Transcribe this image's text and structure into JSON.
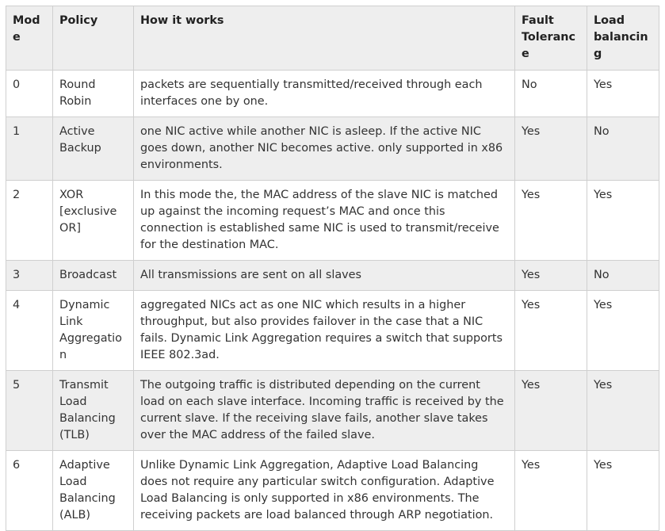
{
  "table": {
    "headers": {
      "mode": "Mode",
      "policy": "Policy",
      "how": "How it works",
      "fault": "Fault Tolerance",
      "load": "Load balancing"
    },
    "rows": [
      {
        "mode": "0",
        "policy": "Round Robin",
        "how": "packets are sequentially transmitted/received through each interfaces one by one.",
        "fault": "No",
        "load": "Yes"
      },
      {
        "mode": "1",
        "policy": "Active Backup",
        "how": "one NIC active while another NIC is asleep. If the active NIC goes down, another NIC becomes active. only supported in x86 environments.",
        "fault": "Yes",
        "load": "No"
      },
      {
        "mode": "2",
        "policy": "XOR [exclusive OR]",
        "how": "In this mode the, the MAC address of the slave NIC is matched up against the incoming request’s MAC and once this connection is established same NIC is used to transmit/receive for the destination MAC.",
        "fault": "Yes",
        "load": "Yes"
      },
      {
        "mode": "3",
        "policy": "Broadcast",
        "how": "All transmissions are sent on all slaves",
        "fault": "Yes",
        "load": "No"
      },
      {
        "mode": "4",
        "policy": "Dynamic Link Aggregation",
        "how": "aggregated NICs act as one NIC which results in a higher throughput, but also provides failover in the case that a NIC fails. Dynamic Link Aggregation requires a switch that supports IEEE 802.3ad.",
        "fault": "Yes",
        "load": "Yes"
      },
      {
        "mode": "5",
        "policy": "Transmit Load Balancing (TLB)",
        "how": "The outgoing traffic is distributed depending on the current load on each slave interface. Incoming traffic is received by the current slave. If the receiving slave fails, another slave takes over the MAC address of the failed slave.",
        "fault": "Yes",
        "load": "Yes"
      },
      {
        "mode": "6",
        "policy": "Adaptive Load Balancing (ALB)",
        "how": "Unlike Dynamic Link Aggregation, Adaptive Load Balancing does not require any particular switch configuration. Adaptive Load Balancing is only supported in x86 environments. The receiving packets are load balanced through ARP negotiation.",
        "fault": "Yes",
        "load": "Yes"
      }
    ]
  }
}
